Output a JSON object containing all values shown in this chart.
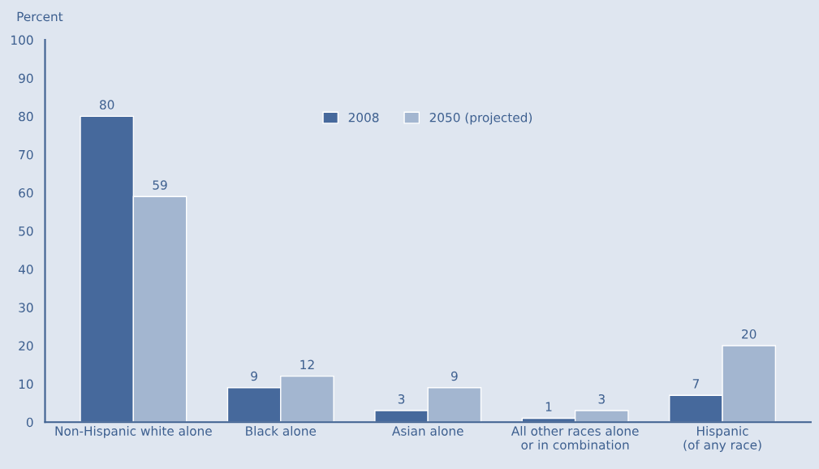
{
  "chart_data": {
    "type": "bar",
    "ylabel": "Percent",
    "categories": [
      "Non-Hispanic white alone",
      "Black alone",
      "Asian alone",
      "All other races alone\nor in combination",
      "Hispanic\n(of any race)"
    ],
    "series": [
      {
        "name": "2008",
        "color": "#46699c",
        "values": [
          80,
          9,
          3,
          1,
          7
        ]
      },
      {
        "name": "2050 (projected)",
        "color": "#a3b6d0",
        "values": [
          59,
          12,
          9,
          3,
          20
        ]
      }
    ],
    "ylim": [
      0,
      100
    ],
    "yticks": [
      0,
      10,
      20,
      30,
      40,
      50,
      60,
      70,
      80,
      90,
      100
    ],
    "data_labels": true,
    "grid": false,
    "legend": "top"
  }
}
